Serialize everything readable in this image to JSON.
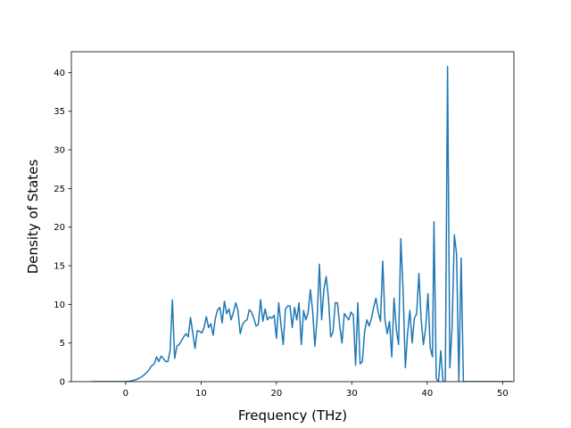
{
  "chart_data": {
    "type": "line",
    "title": "",
    "xlabel": "Frequency (THz)",
    "ylabel": "Density of States",
    "xlim": [
      -7.2,
      51.5
    ],
    "ylim": [
      0,
      42.7
    ],
    "xticks": [
      0,
      10,
      20,
      30,
      40,
      50
    ],
    "yticks": [
      0,
      5,
      10,
      15,
      20,
      25,
      30,
      35,
      40
    ],
    "grid": false,
    "legend": "none",
    "series": [
      {
        "color": "#1f77b4",
        "points": [
          [
            -4.5,
            0
          ],
          [
            -3.0,
            0
          ],
          [
            -1.5,
            0
          ],
          [
            0.0,
            0
          ],
          [
            0.5,
            0.05
          ],
          [
            1.0,
            0.15
          ],
          [
            1.5,
            0.3
          ],
          [
            2.0,
            0.55
          ],
          [
            2.5,
            0.9
          ],
          [
            3.0,
            1.4
          ],
          [
            3.4,
            2.0
          ],
          [
            3.8,
            2.3
          ],
          [
            4.1,
            3.2
          ],
          [
            4.4,
            2.6
          ],
          [
            4.7,
            3.3
          ],
          [
            5.0,
            3.0
          ],
          [
            5.3,
            2.6
          ],
          [
            5.6,
            2.6
          ],
          [
            5.9,
            4.0
          ],
          [
            6.2,
            10.6
          ],
          [
            6.5,
            3.0
          ],
          [
            6.8,
            4.6
          ],
          [
            7.1,
            4.8
          ],
          [
            7.4,
            5.3
          ],
          [
            7.7,
            5.8
          ],
          [
            8.0,
            6.2
          ],
          [
            8.3,
            5.8
          ],
          [
            8.6,
            8.3
          ],
          [
            8.9,
            6.3
          ],
          [
            9.2,
            4.3
          ],
          [
            9.5,
            6.6
          ],
          [
            9.8,
            6.5
          ],
          [
            10.1,
            6.3
          ],
          [
            10.4,
            7.0
          ],
          [
            10.7,
            8.4
          ],
          [
            11.0,
            7.0
          ],
          [
            11.3,
            7.5
          ],
          [
            11.6,
            6.0
          ],
          [
            11.9,
            8.2
          ],
          [
            12.2,
            9.3
          ],
          [
            12.5,
            9.6
          ],
          [
            12.8,
            7.6
          ],
          [
            13.1,
            10.4
          ],
          [
            13.4,
            8.8
          ],
          [
            13.7,
            9.4
          ],
          [
            14.0,
            8.0
          ],
          [
            14.3,
            9.0
          ],
          [
            14.6,
            10.2
          ],
          [
            14.9,
            9.2
          ],
          [
            15.2,
            6.2
          ],
          [
            15.5,
            7.4
          ],
          [
            15.8,
            7.8
          ],
          [
            16.1,
            8.0
          ],
          [
            16.4,
            9.3
          ],
          [
            16.7,
            9.0
          ],
          [
            17.0,
            8.2
          ],
          [
            17.3,
            7.2
          ],
          [
            17.6,
            7.4
          ],
          [
            17.9,
            10.6
          ],
          [
            18.2,
            7.8
          ],
          [
            18.5,
            9.4
          ],
          [
            18.8,
            8.0
          ],
          [
            19.1,
            8.4
          ],
          [
            19.4,
            8.2
          ],
          [
            19.7,
            8.6
          ],
          [
            20.0,
            5.6
          ],
          [
            20.3,
            10.2
          ],
          [
            20.6,
            7.4
          ],
          [
            20.9,
            4.8
          ],
          [
            21.2,
            9.4
          ],
          [
            21.5,
            9.8
          ],
          [
            21.8,
            9.8
          ],
          [
            22.1,
            7.0
          ],
          [
            22.4,
            9.6
          ],
          [
            22.7,
            8.0
          ],
          [
            23.0,
            10.2
          ],
          [
            23.3,
            4.8
          ],
          [
            23.6,
            9.2
          ],
          [
            23.9,
            8.0
          ],
          [
            24.2,
            8.9
          ],
          [
            24.5,
            11.9
          ],
          [
            24.8,
            9.2
          ],
          [
            25.1,
            4.6
          ],
          [
            25.4,
            8.2
          ],
          [
            25.7,
            15.2
          ],
          [
            26.0,
            8.0
          ],
          [
            26.3,
            12.0
          ],
          [
            26.6,
            13.6
          ],
          [
            26.9,
            10.8
          ],
          [
            27.2,
            5.8
          ],
          [
            27.5,
            6.4
          ],
          [
            27.8,
            10.2
          ],
          [
            28.1,
            10.2
          ],
          [
            28.4,
            7.2
          ],
          [
            28.7,
            5.0
          ],
          [
            29.0,
            8.8
          ],
          [
            29.3,
            8.4
          ],
          [
            29.6,
            8.0
          ],
          [
            29.9,
            9.0
          ],
          [
            30.2,
            8.6
          ],
          [
            30.5,
            2.1
          ],
          [
            30.8,
            10.2
          ],
          [
            31.1,
            2.3
          ],
          [
            31.4,
            2.6
          ],
          [
            31.7,
            6.5
          ],
          [
            32.0,
            8.0
          ],
          [
            32.3,
            7.2
          ],
          [
            32.6,
            8.2
          ],
          [
            32.9,
            9.6
          ],
          [
            33.2,
            10.8
          ],
          [
            33.5,
            9.0
          ],
          [
            33.8,
            7.8
          ],
          [
            34.1,
            15.6
          ],
          [
            34.4,
            8.0
          ],
          [
            34.7,
            6.2
          ],
          [
            35.0,
            7.8
          ],
          [
            35.3,
            3.2
          ],
          [
            35.6,
            10.8
          ],
          [
            35.9,
            6.8
          ],
          [
            36.2,
            4.8
          ],
          [
            36.5,
            18.5
          ],
          [
            36.8,
            11.8
          ],
          [
            37.1,
            1.8
          ],
          [
            37.4,
            6.3
          ],
          [
            37.7,
            9.2
          ],
          [
            38.0,
            5.0
          ],
          [
            38.3,
            8.2
          ],
          [
            38.6,
            8.8
          ],
          [
            38.9,
            14.0
          ],
          [
            39.2,
            8.0
          ],
          [
            39.5,
            4.8
          ],
          [
            39.8,
            7.0
          ],
          [
            40.1,
            11.4
          ],
          [
            40.4,
            4.4
          ],
          [
            40.7,
            3.2
          ],
          [
            40.9,
            20.7
          ],
          [
            41.2,
            0.4
          ],
          [
            41.5,
            0
          ],
          [
            41.8,
            4.0
          ],
          [
            42.1,
            0
          ],
          [
            42.4,
            0
          ],
          [
            42.7,
            40.8
          ],
          [
            43.0,
            1.8
          ],
          [
            43.3,
            7.0
          ],
          [
            43.6,
            19.0
          ],
          [
            43.9,
            16.5
          ],
          [
            44.2,
            0
          ],
          [
            44.5,
            16.0
          ],
          [
            44.8,
            0
          ],
          [
            45.0,
            0
          ],
          [
            46.0,
            0
          ],
          [
            48.0,
            0
          ],
          [
            50.0,
            0
          ],
          [
            51.2,
            0
          ]
        ]
      }
    ]
  }
}
